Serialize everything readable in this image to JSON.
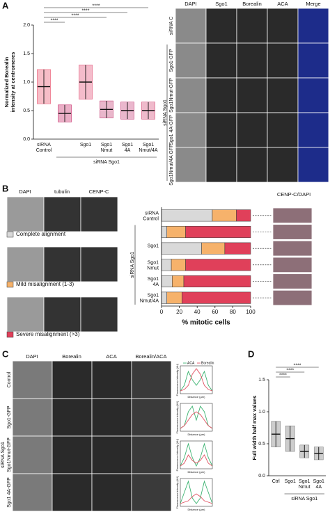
{
  "panel_labels": [
    "A",
    "B",
    "C",
    "D"
  ],
  "panel_A_images": {
    "columns": [
      "DAPI",
      "Sgo1",
      "Borealin",
      "ACA",
      "Merge"
    ],
    "rows": [
      "siRNA C",
      "Sgo1-GFP",
      "Sgo1Nmut-GFP",
      "Sgo1 4A-GFP",
      "Sgo1Nmut/4A GFP"
    ],
    "group": "siRNA Sgo1"
  },
  "panel_B_images": {
    "columns": [
      "DAPI",
      "tubulin",
      "CENP-C"
    ],
    "right_header": "CENP-C/DAPI"
  },
  "panel_C_images": {
    "columns": [
      "DAPI",
      "Borealin",
      "ACA",
      "Borealin/ACA"
    ],
    "rows": [
      "Control",
      "Sgo1-GFP",
      "Sgo1Nmut-GFP",
      "Sgo1 4A-GFP"
    ],
    "group": "siRNA Sgo1"
  },
  "chart_data": [
    {
      "type": "dot",
      "ylabel": [
        "Normalized Borealin",
        "intensity at centromeres"
      ],
      "categories": [
        "siRNA Control",
        null,
        "Sgo1",
        "Sgo1 Nmut",
        "Sgo1 4A",
        "Sgo1 Nmut/4A"
      ],
      "group_label": "siRNA Sgo1",
      "values": [
        0.92,
        0.45,
        1.0,
        0.52,
        0.5,
        0.5
      ],
      "sd": [
        0.3,
        0.15,
        0.3,
        0.15,
        0.15,
        0.15
      ],
      "colors": [
        "#e8415f",
        "#c2185b",
        "#e0406a",
        "#c0306a",
        "#c2306f",
        "#d03a6a"
      ],
      "ylim": [
        0,
        2
      ],
      "yticks": [
        {
          "value": 0,
          "label": "0.0"
        },
        0.5,
        {
          "value": 1,
          "label": "1.0"
        },
        1.5,
        {
          "value": 2,
          "label": "2.0"
        }
      ],
      "annotations": [
        "****",
        "****",
        "****",
        "****"
      ]
    },
    {
      "type": "stacked_barh",
      "categories": [
        "siRNA Control",
        null,
        "Sgo1",
        "Sgo1 Nmut",
        "Sgo1 4A",
        "Sgo1 Nmut/4A"
      ],
      "group_label": "siRNA Sgo1",
      "series": [
        {
          "name": "Complete alignment",
          "color": "#d9d9d9",
          "values": [
            57,
            6,
            45,
            11,
            12,
            6
          ]
        },
        {
          "name": "Mild misalignment (1-3)",
          "color": "#f6b26b",
          "values": [
            27,
            21,
            26,
            16,
            13,
            17
          ]
        },
        {
          "name": "Severe misalignment (>3)",
          "color": "#e0405a",
          "values": [
            16,
            73,
            29,
            73,
            75,
            77
          ]
        }
      ],
      "xlim": [
        0,
        100
      ],
      "xticks": [
        0,
        20,
        40,
        60,
        80,
        100
      ],
      "xlabel": "% mitotic cells"
    },
    {
      "type": "line",
      "xlabel": "Distance (µm)",
      "ylabel": "Fluorescence intensity (AU)",
      "xlim": [
        -1,
        1
      ],
      "ylim": [
        0,
        1
      ],
      "x": [
        -1,
        -0.75,
        -0.5,
        -0.25,
        0,
        0.25,
        0.5,
        0.75,
        1
      ],
      "series": [
        {
          "name": "ACA",
          "color": "#3cb371",
          "values": [
            0.1,
            0.3,
            0.8,
            0.5,
            0.3,
            0.5,
            0.8,
            0.3,
            0.1
          ]
        },
        {
          "name": "Borealin",
          "color": "#e05060",
          "values": [
            0.1,
            0.15,
            0.3,
            0.7,
            0.9,
            0.7,
            0.3,
            0.15,
            0.1
          ]
        }
      ]
    },
    {
      "type": "line",
      "xlabel": "Distance (µm)",
      "ylabel": "Fluorescence intensity (AU)",
      "xlim": [
        -1,
        1
      ],
      "ylim": [
        0,
        1
      ],
      "x": [
        -1,
        -0.75,
        -0.5,
        -0.25,
        0,
        0.25,
        0.5,
        0.75,
        1
      ],
      "series": [
        {
          "color": "#3cb371",
          "values": [
            0.1,
            0.2,
            0.7,
            0.9,
            0.4,
            0.9,
            0.7,
            0.2,
            0.1
          ]
        },
        {
          "color": "#e05060",
          "values": [
            0.1,
            0.2,
            0.4,
            0.6,
            0.7,
            0.6,
            0.4,
            0.2,
            0.1
          ]
        }
      ]
    },
    {
      "type": "line",
      "xlabel": "Distance (µm)",
      "ylabel": "Fluorescence intensity (AU)",
      "xlim": [
        -1,
        1
      ],
      "ylim": [
        0,
        1
      ],
      "x": [
        -1,
        -0.75,
        -0.5,
        -0.25,
        0,
        0.25,
        0.5,
        0.75,
        1
      ],
      "series": [
        {
          "color": "#3cb371",
          "values": [
            0.1,
            0.4,
            0.9,
            0.4,
            0.1,
            0.4,
            0.9,
            0.4,
            0.1
          ]
        },
        {
          "color": "#e05060",
          "values": [
            0.1,
            0.2,
            0.5,
            0.3,
            0.2,
            0.3,
            0.5,
            0.2,
            0.1
          ]
        }
      ]
    },
    {
      "type": "line",
      "xlabel": "Distance (µm)",
      "ylabel": "Fluorescence intensity (AU)",
      "xlim": [
        -1,
        1
      ],
      "ylim": [
        0,
        1
      ],
      "x": [
        -1,
        -0.75,
        -0.5,
        -0.25,
        0,
        0.25,
        0.5,
        0.75,
        1
      ],
      "series": [
        {
          "color": "#3cb371",
          "values": [
            0.1,
            0.5,
            0.9,
            0.3,
            0.1,
            0.3,
            0.9,
            0.5,
            0.1
          ]
        },
        {
          "color": "#e05060",
          "values": [
            0.1,
            0.15,
            0.2,
            0.35,
            0.45,
            0.35,
            0.2,
            0.15,
            0.1
          ]
        }
      ]
    },
    {
      "type": "dot",
      "ylabel": [
        "Full width half max values"
      ],
      "categories": [
        "Ctrl",
        "Sgo1",
        "Sgo1 Nmut",
        "Sgo1 4A"
      ],
      "group_label": "siRNA Sgo1",
      "values": [
        0.65,
        0.58,
        0.38,
        0.35
      ],
      "sd": [
        0.2,
        0.2,
        0.1,
        0.1
      ],
      "colors": [
        "#707070",
        "#707070",
        "#707070",
        "#707070"
      ],
      "ylim": [
        0,
        1.5
      ],
      "yticks": [
        {
          "value": 0,
          "label": "0.0"
        },
        0.5,
        {
          "value": 1,
          "label": "1.0"
        },
        1.5
      ],
      "annotations": [
        "****",
        "****",
        "****"
      ]
    }
  ]
}
